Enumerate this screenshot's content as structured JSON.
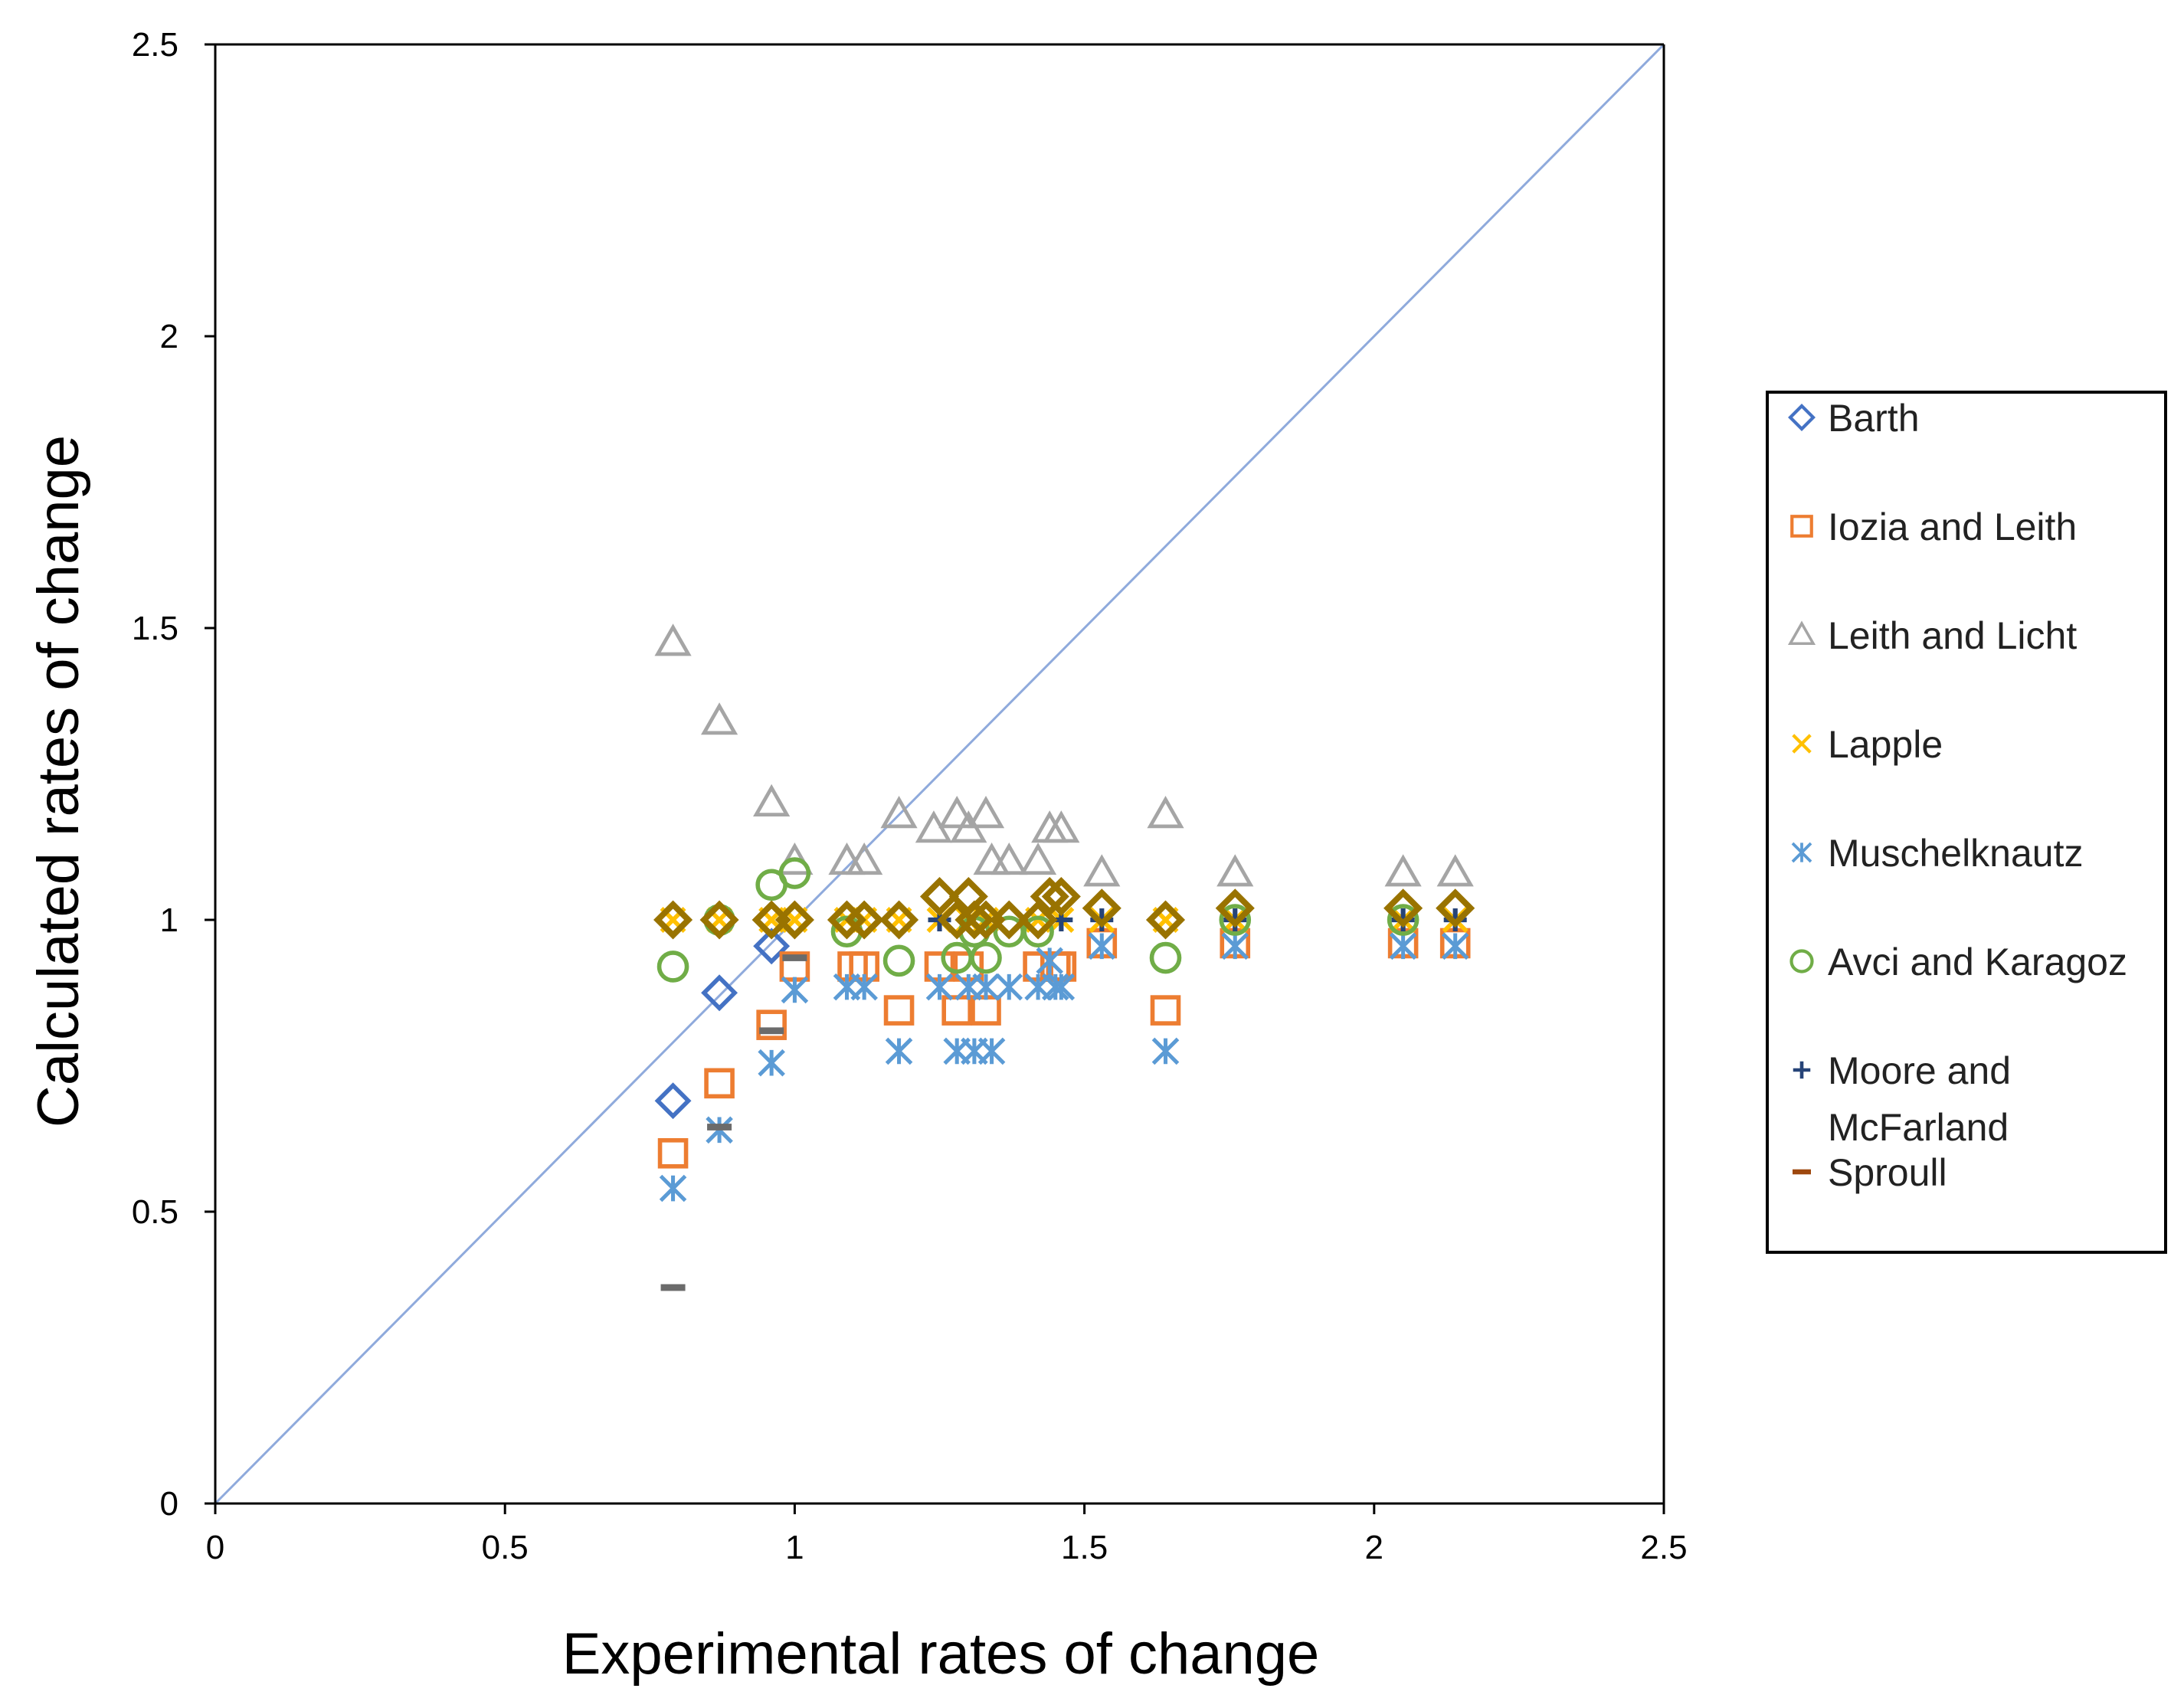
{
  "chart_data": {
    "type": "scatter",
    "title": "",
    "xlabel": "Experimental rates of change",
    "ylabel": "Calculated rates of change",
    "xlim": [
      0,
      2.5
    ],
    "ylim": [
      0,
      2.5
    ],
    "xticks": [
      "0",
      "0.5",
      "1",
      "1.5",
      "2",
      "2.5"
    ],
    "yticks": [
      "0",
      "0.5",
      "1",
      "1.5",
      "2",
      "2.5"
    ],
    "grid": false,
    "reference_line": {
      "x": [
        0,
        2.5
      ],
      "y": [
        0,
        2.5
      ],
      "color": "#8FAADC"
    },
    "legend_position": "right",
    "series": [
      {
        "name": "Barth",
        "marker": "diamond",
        "color": "#4472C4",
        "x": [
          0.79,
          0.87,
          0.96,
          1.0
        ],
        "y": [
          0.69,
          0.875,
          0.955,
          1.0
        ]
      },
      {
        "name": "Iozia and Leith",
        "marker": "square",
        "color": "#ED7D31",
        "x": [
          0.79,
          0.87,
          0.96,
          1.0,
          1.1,
          1.12,
          1.18,
          1.25,
          1.28,
          1.3,
          1.33,
          1.42,
          1.45,
          1.46,
          1.53,
          1.64,
          1.76,
          2.05,
          2.14
        ],
        "y": [
          0.6,
          0.72,
          0.82,
          0.92,
          0.92,
          0.92,
          0.845,
          0.92,
          0.845,
          0.92,
          0.845,
          0.92,
          0.92,
          0.92,
          0.96,
          0.845,
          0.96,
          0.96,
          0.96
        ]
      },
      {
        "name": "Leith and Licht",
        "marker": "triangle",
        "color": "#A5A5A5",
        "x": [
          0.79,
          0.87,
          0.96,
          1.0,
          1.09,
          1.12,
          1.18,
          1.24,
          1.28,
          1.3,
          1.33,
          1.34,
          1.37,
          1.42,
          1.44,
          1.46,
          1.53,
          1.64,
          1.76,
          2.05,
          2.14
        ],
        "y": [
          1.475,
          1.34,
          1.2,
          1.1,
          1.1,
          1.1,
          1.18,
          1.155,
          1.18,
          1.155,
          1.18,
          1.1,
          1.1,
          1.1,
          1.155,
          1.155,
          1.08,
          1.18,
          1.08,
          1.08,
          1.08
        ]
      },
      {
        "name": "Lapple",
        "marker": "x",
        "color": "#FFC000",
        "x": [
          0.79,
          0.87,
          0.96,
          1.0,
          1.09,
          1.12,
          1.18,
          1.25,
          1.3,
          1.33,
          1.42,
          1.46,
          1.53,
          1.64,
          1.76,
          2.05,
          2.14
        ],
        "y": [
          1.0,
          1.0,
          1.0,
          1.0,
          1.0,
          1.0,
          1.0,
          1.0,
          1.0,
          1.0,
          1.0,
          1.0,
          1.0,
          1.0,
          1.0,
          1.0,
          1.0
        ]
      },
      {
        "name": "Muschelknautz",
        "marker": "asterisk",
        "color": "#5B9BD5",
        "x": [
          0.79,
          0.87,
          0.96,
          1.0,
          1.09,
          1.12,
          1.18,
          1.25,
          1.28,
          1.3,
          1.31,
          1.33,
          1.34,
          1.37,
          1.42,
          1.44,
          1.45,
          1.46,
          1.53,
          1.64,
          1.76,
          2.05,
          2.14
        ],
        "y": [
          0.54,
          0.64,
          0.755,
          0.88,
          0.885,
          0.885,
          0.775,
          0.885,
          0.775,
          0.885,
          0.775,
          0.885,
          0.775,
          0.885,
          0.885,
          0.93,
          0.885,
          0.885,
          0.955,
          0.775,
          0.955,
          0.955,
          0.955
        ]
      },
      {
        "name": "Avci and Karagoz",
        "marker": "circle",
        "color": "#70AD47",
        "x": [
          0.79,
          0.87,
          0.96,
          1.0,
          1.09,
          1.18,
          1.28,
          1.31,
          1.33,
          1.37,
          1.42,
          1.64,
          1.76,
          2.05
        ],
        "y": [
          0.92,
          1.0,
          1.06,
          1.08,
          0.98,
          0.93,
          0.935,
          0.98,
          0.935,
          0.98,
          0.98,
          0.935,
          1.0,
          1.0
        ]
      },
      {
        "name": "Moore and McFarland",
        "marker": "plus",
        "color": "#264478",
        "x": [
          1.25,
          1.46,
          1.53,
          1.76,
          2.05,
          2.14
        ],
        "y": [
          1.0,
          1.0,
          1.0,
          1.0,
          1.0,
          1.0
        ]
      },
      {
        "name": "Sproull",
        "marker": "dash",
        "color": "#9E480E",
        "x": [
          0.79,
          0.87,
          0.96,
          1.0
        ],
        "y": [
          0.37,
          0.645,
          0.81,
          0.935
        ]
      },
      {
        "name": "",
        "marker": "diamond-thick",
        "color": "#997300",
        "x": [
          0.79,
          0.87,
          0.96,
          1.0,
          1.09,
          1.12,
          1.18,
          1.25,
          1.28,
          1.3,
          1.31,
          1.33,
          1.37,
          1.42,
          1.44,
          1.46,
          1.53,
          1.64,
          1.76,
          2.05,
          2.14
        ],
        "y": [
          1.0,
          1.0,
          1.0,
          1.0,
          1.0,
          1.0,
          1.0,
          1.04,
          1.0,
          1.04,
          1.0,
          1.0,
          1.0,
          1.0,
          1.04,
          1.04,
          1.02,
          1.0,
          1.02,
          1.02,
          1.02
        ]
      }
    ]
  },
  "legend": {
    "items": [
      {
        "label": "Barth"
      },
      {
        "label": "Iozia and Leith"
      },
      {
        "label": "Leith and Licht"
      },
      {
        "label": "Lapple"
      },
      {
        "label": "Muschelknautz"
      },
      {
        "label": "Avci and Karagoz"
      },
      {
        "label": "Moore and",
        "label2": "McFarland"
      },
      {
        "label": "Sproull"
      }
    ]
  }
}
